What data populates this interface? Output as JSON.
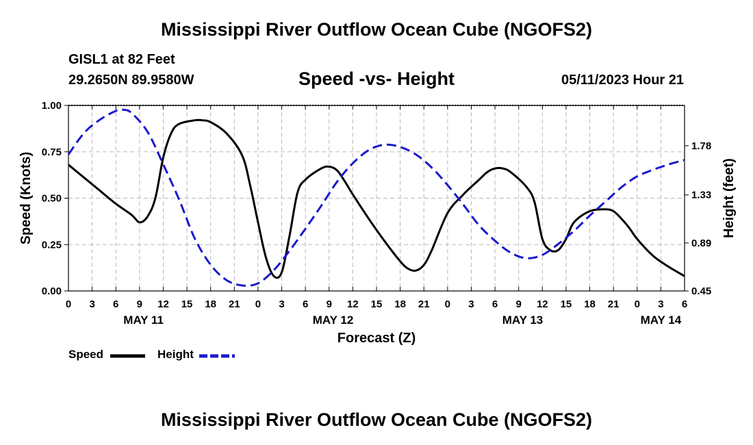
{
  "header": {
    "title": "Mississippi River Outflow Ocean Cube (NGOFS2)",
    "station": "GISL1 at 82 Feet",
    "coordinates": "29.2650N  89.9580W",
    "subtitle": "Speed -vs- Height",
    "datetime": "05/11/2023 Hour 21",
    "bottom_title": "Mississippi River Outflow Ocean Cube (NGOFS2)"
  },
  "chart_data": {
    "type": "line",
    "title": "Speed -vs- Height",
    "xlabel": "Forecast (Z)",
    "ylabel": "Speed (Knots)",
    "y2label": "Height (feet)",
    "x_hours_range": [
      0,
      78
    ],
    "x_tick_labels": [
      "0",
      "3",
      "6",
      "9",
      "12",
      "15",
      "18",
      "21",
      "0",
      "3",
      "6",
      "9",
      "12",
      "15",
      "18",
      "21",
      "0",
      "3",
      "6",
      "9",
      "12",
      "15",
      "18",
      "21",
      "0",
      "3",
      "6"
    ],
    "date_labels": [
      {
        "label": "MAY 11",
        "hour": 9.5
      },
      {
        "label": "MAY 12",
        "hour": 33.5
      },
      {
        "label": "MAY 13",
        "hour": 57.5
      },
      {
        "label": "MAY 14",
        "hour": 75
      }
    ],
    "ylim": [
      0,
      1
    ],
    "y_ticks": [
      "0.00",
      "0.25",
      "0.50",
      "0.75",
      "1.00"
    ],
    "y2lim": [
      0.45,
      2.15
    ],
    "y2_ticks": [
      "0.45",
      "0.89",
      "1.33",
      "1.78"
    ],
    "grid": true,
    "legend": [
      {
        "name": "Speed",
        "color": "#000000",
        "style": "solid"
      },
      {
        "name": "Height",
        "color": "#1a1acc",
        "style": "dashed"
      }
    ],
    "series": [
      {
        "name": "Speed",
        "axis": "left",
        "color": "#000000",
        "x": [
          0,
          2,
          4,
          6,
          8,
          9,
          10,
          11,
          12,
          13,
          14,
          16,
          17,
          18,
          20,
          22,
          23,
          24,
          25,
          26,
          27,
          28,
          29,
          30,
          32,
          33,
          34,
          35,
          36,
          38,
          40,
          42,
          43,
          44,
          45,
          46,
          48,
          50,
          52,
          53,
          54,
          55,
          56,
          58,
          59,
          60,
          61,
          62,
          63,
          64,
          66,
          68,
          69,
          70,
          71,
          72,
          74,
          76,
          78
        ],
        "y": [
          0.68,
          0.61,
          0.54,
          0.47,
          0.41,
          0.37,
          0.4,
          0.5,
          0.72,
          0.85,
          0.9,
          0.92,
          0.92,
          0.91,
          0.85,
          0.73,
          0.57,
          0.37,
          0.18,
          0.08,
          0.1,
          0.3,
          0.53,
          0.6,
          0.66,
          0.67,
          0.65,
          0.59,
          0.52,
          0.39,
          0.27,
          0.16,
          0.12,
          0.11,
          0.14,
          0.22,
          0.42,
          0.52,
          0.6,
          0.64,
          0.66,
          0.66,
          0.64,
          0.56,
          0.48,
          0.28,
          0.22,
          0.22,
          0.28,
          0.37,
          0.43,
          0.44,
          0.43,
          0.39,
          0.34,
          0.28,
          0.19,
          0.13,
          0.08
        ]
      },
      {
        "name": "Height",
        "axis": "right",
        "color": "#1a1acc",
        "x": [
          0,
          2,
          4,
          6,
          7,
          8,
          10,
          12,
          14,
          16,
          18,
          20,
          22,
          24,
          26,
          28,
          30,
          32,
          34,
          36,
          38,
          40,
          42,
          44,
          46,
          48,
          50,
          52,
          54,
          56,
          58,
          60,
          62,
          64,
          66,
          68,
          70,
          72,
          74,
          76,
          78
        ],
        "y": [
          1.7,
          1.9,
          2.02,
          2.1,
          2.11,
          2.08,
          1.91,
          1.61,
          1.29,
          0.93,
          0.69,
          0.55,
          0.5,
          0.52,
          0.64,
          0.82,
          1.02,
          1.23,
          1.45,
          1.62,
          1.74,
          1.79,
          1.77,
          1.7,
          1.58,
          1.42,
          1.24,
          1.05,
          0.91,
          0.8,
          0.75,
          0.78,
          0.88,
          1.0,
          1.14,
          1.27,
          1.4,
          1.5,
          1.56,
          1.61,
          1.65
        ]
      }
    ]
  }
}
